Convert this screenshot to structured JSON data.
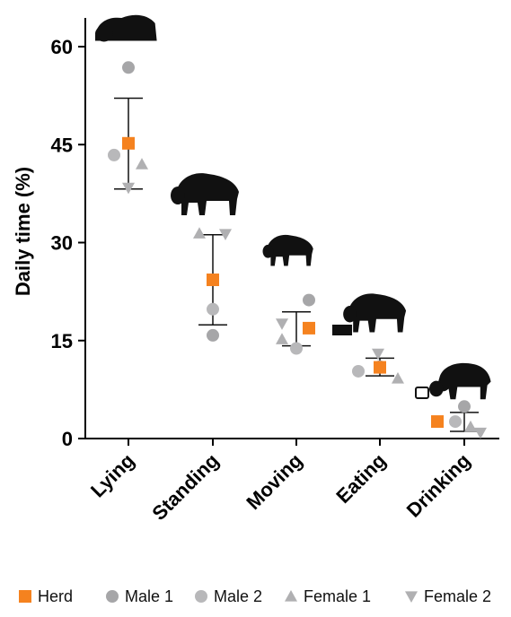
{
  "chart_data": {
    "type": "scatter",
    "ylabel": "Daily time (%)",
    "xlabel": "",
    "ylim": [
      0,
      65
    ],
    "yticks": [
      0,
      15,
      30,
      45,
      60
    ],
    "categories": [
      "Lying",
      "Standing",
      "Moving",
      "Eating",
      "Drinking"
    ],
    "series": [
      {
        "name": "Herd",
        "marker": "square",
        "color": "#F5821F",
        "values": [
          45.2,
          24.3,
          16.9,
          10.9,
          2.6
        ]
      },
      {
        "name": "Male 1",
        "marker": "circle",
        "color": "#A6A6A8",
        "values": [
          56.8,
          15.8,
          21.2,
          11.0,
          4.9
        ]
      },
      {
        "name": "Male 2",
        "marker": "circle",
        "color": "#B8B8BA",
        "values": [
          43.4,
          19.8,
          13.8,
          10.3,
          2.6
        ]
      },
      {
        "name": "Female 1",
        "marker": "triangle-up",
        "color": "#B0B0B2",
        "values": [
          42.0,
          31.4,
          15.2,
          9.2,
          1.8
        ]
      },
      {
        "name": "Female 2",
        "marker": "triangle-down",
        "color": "#B0B0B2",
        "values": [
          38.4,
          31.3,
          17.6,
          13.0,
          0.9
        ]
      }
    ],
    "error_bars": [
      {
        "category": "Lying",
        "low": 38.2,
        "high": 52.1
      },
      {
        "category": "Standing",
        "low": 17.4,
        "high": 31.2
      },
      {
        "category": "Moving",
        "low": 14.2,
        "high": 19.4
      },
      {
        "category": "Eating",
        "low": 9.6,
        "high": 12.3
      },
      {
        "category": "Drinking",
        "low": 1.1,
        "high": 4.0
      }
    ],
    "legend_position": "bottom",
    "grid": false,
    "icons": [
      "bison-lying-icon",
      "bison-standing-icon",
      "bison-moving-icon",
      "bison-eating-icon",
      "bison-drinking-icon"
    ]
  }
}
